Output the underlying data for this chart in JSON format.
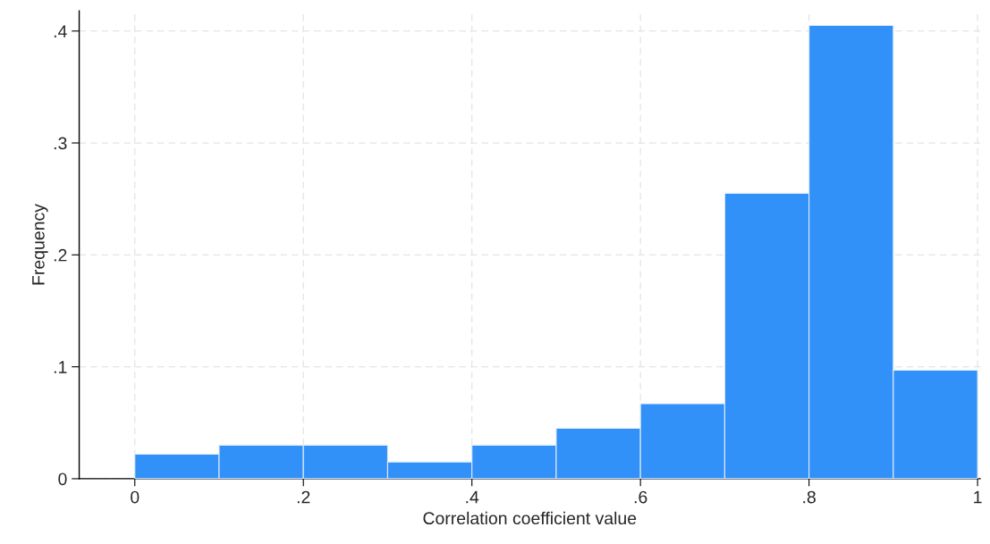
{
  "chart_data": {
    "type": "histogram",
    "xlabel": "Correlation coefficient value",
    "ylabel": "Frequency",
    "bins": [
      0,
      0.1,
      0.2,
      0.3,
      0.4,
      0.5,
      0.6,
      0.7,
      0.8,
      0.9,
      1.0
    ],
    "values": [
      0.022,
      0.03,
      0.03,
      0.015,
      0.03,
      0.045,
      0.067,
      0.255,
      0.405,
      0.097
    ],
    "color": "#3290f9",
    "xlim": [
      -0.066,
      1.003
    ],
    "ylim": [
      0,
      0.418
    ],
    "xticks": [
      0,
      {
        "value": 0.2,
        "label": ".2"
      },
      {
        "value": 0.4,
        "label": ".4"
      },
      {
        "value": 0.6,
        "label": ".6"
      },
      {
        "value": 0.8,
        "label": ".8"
      },
      1
    ],
    "yticks": [
      0,
      {
        "value": 0.1,
        "label": ".1"
      },
      {
        "value": 0.2,
        "label": ".2"
      },
      {
        "value": 0.3,
        "label": ".3"
      },
      {
        "value": 0.4,
        "label": ".4"
      }
    ],
    "grid": true,
    "legend": false
  }
}
